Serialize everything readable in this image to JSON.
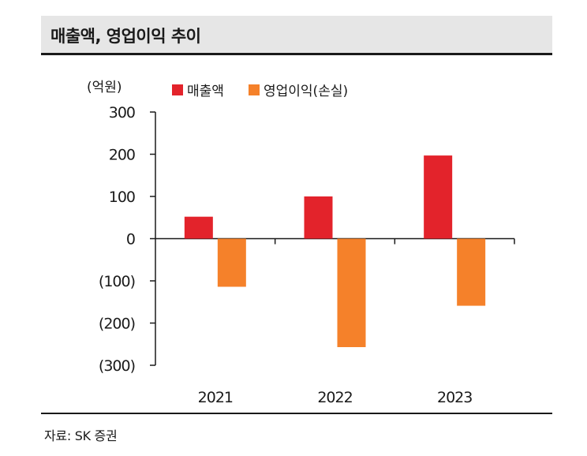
{
  "header": {
    "title": "매출액, 영업이익 추이"
  },
  "source": {
    "text": "자료: SK 증권"
  },
  "colors": {
    "revenue": "#e3232b",
    "operating_income": "#f5812a",
    "axis": "#1a1a1a",
    "header_bg": "#e6e6e6"
  },
  "chart_data": {
    "type": "bar",
    "title": "매출액, 영업이익 추이",
    "unit_label": "(억원)",
    "xlabel": "",
    "ylabel": "",
    "ylim": [
      -300,
      300
    ],
    "y_ticks": [
      300,
      200,
      100,
      0,
      -100,
      -200,
      -300
    ],
    "y_tick_labels": [
      "300",
      "200",
      "100",
      "0",
      "(100)",
      "(200)",
      "(300)"
    ],
    "categories": [
      "2021",
      "2022",
      "2023"
    ],
    "legend_position": "top",
    "grid": false,
    "series": [
      {
        "name": "매출액",
        "color": "#e3232b",
        "values": [
          52,
          100,
          197
        ]
      },
      {
        "name": "영업이익(손실)",
        "color": "#f5812a",
        "values": [
          -114,
          -257,
          -159
        ]
      }
    ]
  }
}
